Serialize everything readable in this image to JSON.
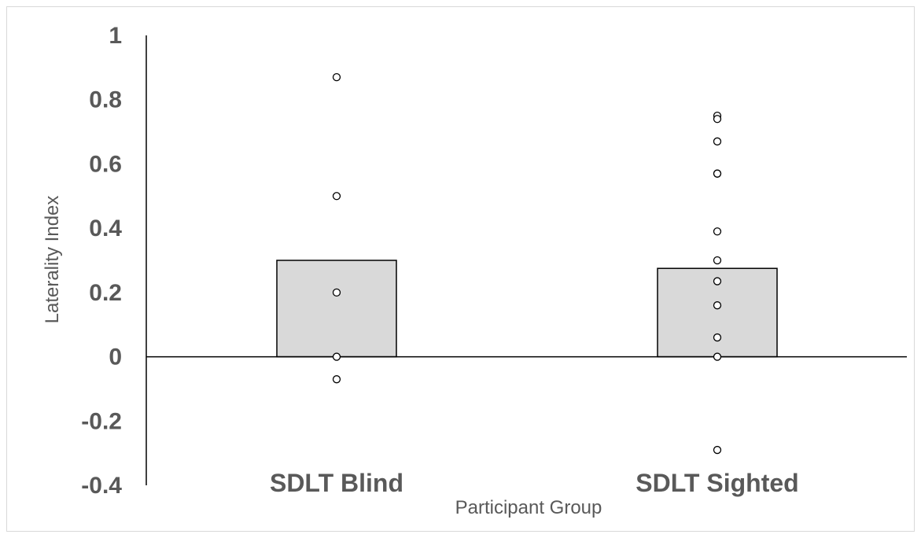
{
  "chart_data": {
    "type": "bar",
    "title": "",
    "xlabel": "Participant Group",
    "ylabel": "Laterality Index",
    "categories": [
      "SDLT Blind",
      "SDLT Sighted"
    ],
    "values": [
      0.3,
      0.275
    ],
    "ylim": [
      -0.4,
      1
    ],
    "yticks": [
      1,
      0.8,
      0.6,
      0.4,
      0.2,
      0,
      -0.2,
      -0.4
    ],
    "ytick_labels": [
      "1",
      "0.8",
      "0.6",
      "0.4",
      "0.2",
      "0",
      "-0.2",
      "-0.4"
    ],
    "points": [
      [
        0.87,
        0.5,
        0.2,
        0.0,
        -0.07
      ],
      [
        0.75,
        0.74,
        0.67,
        0.57,
        0.57,
        0.39,
        0.3,
        0.235,
        0.16,
        0.06,
        0.0,
        -0.29
      ]
    ],
    "grid": false,
    "bar_color": "#d9d9d9",
    "bar_edge_color": "#000000",
    "point_fill": "#ffffff",
    "point_edge_color": "#000000"
  }
}
